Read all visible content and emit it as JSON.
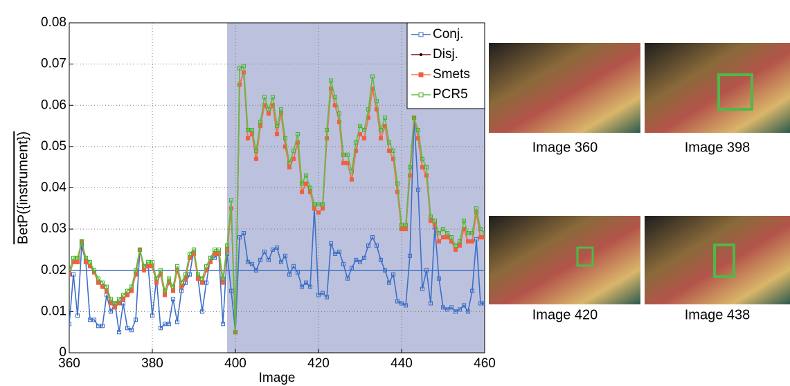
{
  "chart_data": {
    "type": "line",
    "xlabel": "Image",
    "ylabel": "BetP({instrument})",
    "x": [
      360,
      361,
      362,
      363,
      364,
      365,
      366,
      367,
      368,
      369,
      370,
      371,
      372,
      373,
      374,
      375,
      376,
      377,
      378,
      379,
      380,
      381,
      382,
      383,
      384,
      385,
      386,
      387,
      388,
      389,
      390,
      391,
      392,
      393,
      394,
      395,
      396,
      397,
      398,
      399,
      400,
      401,
      402,
      403,
      404,
      405,
      406,
      407,
      408,
      409,
      410,
      411,
      412,
      413,
      414,
      415,
      416,
      417,
      418,
      419,
      420,
      421,
      422,
      423,
      424,
      425,
      426,
      427,
      428,
      429,
      430,
      431,
      432,
      433,
      434,
      435,
      436,
      437,
      438,
      439,
      440,
      441,
      442,
      443,
      444,
      445,
      446,
      447,
      448,
      449,
      450,
      451,
      452,
      453,
      454,
      455,
      456,
      457,
      458,
      459,
      460
    ],
    "series": [
      {
        "name": "Conj.",
        "color": "#3d6fc6",
        "marker": "square-open",
        "marker_color": "#3d6fc6",
        "values": [
          0.007,
          0.019,
          0.009,
          0.026,
          0.022,
          0.008,
          0.008,
          0.0065,
          0.0065,
          0.014,
          0.01,
          0.012,
          0.005,
          0.012,
          0.006,
          0.0055,
          0.008,
          0.025,
          0.021,
          0.021,
          0.009,
          0.018,
          0.006,
          0.007,
          0.007,
          0.013,
          0.0075,
          0.015,
          0.017,
          0.019,
          0.025,
          0.018,
          0.01,
          0.017,
          0.023,
          0.023,
          0.024,
          0.007,
          0.024,
          0.015,
          0.005,
          0.028,
          0.029,
          0.022,
          0.0215,
          0.02,
          0.0225,
          0.0245,
          0.0225,
          0.025,
          0.0255,
          0.022,
          0.0235,
          0.019,
          0.021,
          0.0195,
          0.016,
          0.017,
          0.016,
          0.035,
          0.014,
          0.0145,
          0.0135,
          0.0265,
          0.024,
          0.0245,
          0.0215,
          0.018,
          0.0205,
          0.0225,
          0.022,
          0.023,
          0.026,
          0.028,
          0.026,
          0.0225,
          0.02,
          0.017,
          0.019,
          0.0125,
          0.012,
          0.0115,
          0.0235,
          0.057,
          0.0395,
          0.0155,
          0.02,
          0.012,
          0.0305,
          0.018,
          0.011,
          0.0105,
          0.011,
          0.01,
          0.0105,
          0.0115,
          0.01,
          0.015,
          0.0275,
          0.012,
          0.012
        ]
      },
      {
        "name": "Disj.",
        "color": "#8b1010",
        "marker": "dot",
        "marker_color": "#000000",
        "values": [
          0.019,
          0.022,
          0.022,
          0.027,
          0.022,
          0.021,
          0.0195,
          0.017,
          0.016,
          0.015,
          0.012,
          0.011,
          0.012,
          0.013,
          0.014,
          0.015,
          0.019,
          0.025,
          0.02,
          0.021,
          0.021,
          0.017,
          0.019,
          0.014,
          0.017,
          0.015,
          0.02,
          0.016,
          0.018,
          0.023,
          0.024,
          0.018,
          0.017,
          0.02,
          0.022,
          0.024,
          0.024,
          0.017,
          0.025,
          0.035,
          0.005,
          0.065,
          0.068,
          0.052,
          0.053,
          0.047,
          0.055,
          0.06,
          0.058,
          0.06,
          0.053,
          0.058,
          0.05,
          0.045,
          0.047,
          0.051,
          0.039,
          0.041,
          0.039,
          0.035,
          0.034,
          0.035,
          0.052,
          0.064,
          0.06,
          0.056,
          0.046,
          0.046,
          0.042,
          0.049,
          0.053,
          0.052,
          0.057,
          0.064,
          0.059,
          0.052,
          0.055,
          0.049,
          0.047,
          0.039,
          0.03,
          0.03,
          0.043,
          0.057,
          0.052,
          0.045,
          0.043,
          0.032,
          0.031,
          0.027,
          0.028,
          0.028,
          0.027,
          0.025,
          0.026,
          0.03,
          0.027,
          0.027,
          0.034,
          0.028,
          0.028
        ]
      },
      {
        "name": "Smets",
        "color": "#f07a50",
        "marker": "square",
        "marker_color": "#f06040",
        "values": [
          0.019,
          0.022,
          0.022,
          0.027,
          0.022,
          0.021,
          0.0195,
          0.017,
          0.016,
          0.015,
          0.012,
          0.011,
          0.012,
          0.013,
          0.014,
          0.015,
          0.019,
          0.025,
          0.02,
          0.021,
          0.021,
          0.017,
          0.019,
          0.014,
          0.017,
          0.015,
          0.02,
          0.016,
          0.018,
          0.023,
          0.024,
          0.018,
          0.017,
          0.02,
          0.022,
          0.024,
          0.024,
          0.017,
          0.025,
          0.035,
          0.005,
          0.065,
          0.068,
          0.052,
          0.053,
          0.047,
          0.055,
          0.06,
          0.058,
          0.06,
          0.053,
          0.058,
          0.05,
          0.045,
          0.047,
          0.051,
          0.039,
          0.041,
          0.039,
          0.035,
          0.034,
          0.035,
          0.052,
          0.064,
          0.06,
          0.056,
          0.046,
          0.046,
          0.042,
          0.049,
          0.053,
          0.052,
          0.057,
          0.064,
          0.059,
          0.052,
          0.055,
          0.049,
          0.047,
          0.039,
          0.03,
          0.03,
          0.043,
          0.057,
          0.052,
          0.045,
          0.043,
          0.032,
          0.031,
          0.027,
          0.028,
          0.028,
          0.027,
          0.025,
          0.026,
          0.03,
          0.027,
          0.027,
          0.034,
          0.028,
          0.028
        ]
      },
      {
        "name": "PCR5",
        "color": "#5cbf3f",
        "marker": "square-open",
        "marker_color": "#4cb030",
        "values": [
          0.02,
          0.023,
          0.023,
          0.027,
          0.023,
          0.022,
          0.02,
          0.018,
          0.017,
          0.016,
          0.013,
          0.012,
          0.013,
          0.014,
          0.015,
          0.016,
          0.02,
          0.025,
          0.021,
          0.022,
          0.022,
          0.018,
          0.02,
          0.015,
          0.018,
          0.016,
          0.021,
          0.017,
          0.019,
          0.024,
          0.025,
          0.019,
          0.018,
          0.021,
          0.023,
          0.025,
          0.025,
          0.018,
          0.026,
          0.037,
          0.005,
          0.069,
          0.0695,
          0.054,
          0.054,
          0.049,
          0.056,
          0.062,
          0.059,
          0.062,
          0.055,
          0.059,
          0.052,
          0.046,
          0.049,
          0.053,
          0.041,
          0.043,
          0.04,
          0.036,
          0.036,
          0.036,
          0.054,
          0.066,
          0.062,
          0.058,
          0.048,
          0.048,
          0.044,
          0.051,
          0.055,
          0.054,
          0.059,
          0.067,
          0.061,
          0.054,
          0.057,
          0.051,
          0.049,
          0.041,
          0.031,
          0.031,
          0.045,
          0.057,
          0.054,
          0.047,
          0.045,
          0.033,
          0.032,
          0.029,
          0.03,
          0.029,
          0.028,
          0.026,
          0.027,
          0.032,
          0.029,
          0.029,
          0.035,
          0.03,
          0.029
        ]
      }
    ],
    "xlim": [
      360,
      460
    ],
    "xticks": [
      360,
      380,
      400,
      420,
      440,
      460
    ],
    "ylim": [
      0,
      0.08
    ],
    "yticks": [
      0,
      0.01,
      0.02,
      0.03,
      0.04,
      0.05,
      0.06,
      0.07,
      0.08
    ],
    "grid": true,
    "legend": "northeast",
    "hline": {
      "value": 0.02,
      "color": "#3d6fc6"
    },
    "highlight": {
      "from": 398,
      "to": 460,
      "color": "#bcc2de"
    }
  },
  "images": [
    {
      "caption": "Image 360"
    },
    {
      "caption": "Image 398"
    },
    {
      "caption": "Image 420"
    },
    {
      "caption": "Image 438"
    }
  ]
}
